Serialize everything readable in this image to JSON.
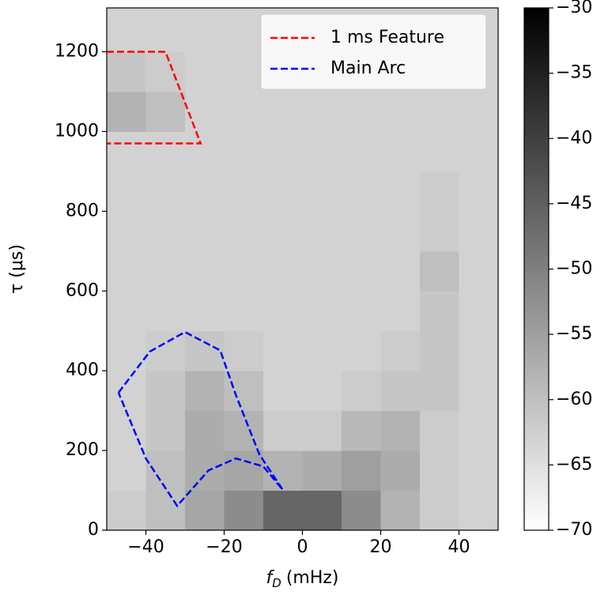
{
  "chart_data": {
    "type": "heatmap",
    "xlabel": {
      "symbol": "f",
      "subscript": "D",
      "unit": "(mHz)"
    },
    "ylabel": "τ (μs)",
    "xlim": [
      -50,
      50
    ],
    "ylim": [
      0,
      1310
    ],
    "xticks": [
      {
        "value": -40,
        "label": "−40"
      },
      {
        "value": -20,
        "label": "−20"
      },
      0,
      20,
      40
    ],
    "yticks": [
      0,
      200,
      400,
      600,
      800,
      1000,
      1200
    ],
    "xbins": [
      -50,
      -40,
      -30,
      -20,
      -10,
      0,
      10,
      20,
      30,
      40,
      50
    ],
    "ybins": [
      0,
      100,
      200,
      300,
      400,
      500,
      600,
      700,
      800,
      900,
      1000,
      1100,
      1200,
      1310
    ],
    "z": [
      [
        -62,
        -60,
        -56,
        -52,
        -46,
        -46,
        -52,
        -58,
        -62,
        -63
      ],
      [
        -63,
        -60,
        -57,
        -56,
        -58,
        -57,
        -55,
        -57,
        -62,
        -63
      ],
      [
        -63,
        -61,
        -57,
        -58,
        -62,
        -62,
        -59,
        -58,
        -62,
        -63
      ],
      [
        -63,
        -61,
        -58,
        -60,
        -63,
        -63,
        -62,
        -61,
        -61,
        -63
      ],
      [
        -63,
        -62,
        -61,
        -62,
        -63,
        -63,
        -63,
        -62,
        -61,
        -63
      ],
      [
        -63,
        -63,
        -63,
        -63,
        -63,
        -63,
        -63,
        -63,
        -61,
        -63
      ],
      [
        -63,
        -63,
        -63,
        -63,
        -63,
        -63,
        -63,
        -63,
        -60,
        -63
      ],
      [
        -63,
        -63,
        -63,
        -63,
        -63,
        -63,
        -63,
        -63,
        -62,
        -63
      ],
      [
        -63,
        -63,
        -63,
        -63,
        -63,
        -63,
        -63,
        -63,
        -62,
        -63
      ],
      [
        -63,
        -63,
        -63,
        -63,
        -63,
        -63,
        -63,
        -63,
        -63,
        -63
      ],
      [
        -58,
        -60,
        -63,
        -63,
        -63,
        -63,
        -63,
        -63,
        -63,
        -63
      ],
      [
        -61,
        -62,
        -63,
        -63,
        -63,
        -63,
        -63,
        -63,
        -63,
        -63
      ],
      [
        -63,
        -63,
        -63,
        -63,
        -63,
        -63,
        -63,
        -63,
        -63,
        -63
      ]
    ],
    "colorbar": {
      "lim": [
        -70,
        -30
      ],
      "ticks": [
        {
          "value": -70,
          "label": "−70"
        },
        {
          "value": -65,
          "label": "−65"
        },
        {
          "value": -60,
          "label": "−60"
        },
        {
          "value": -55,
          "label": "−55"
        },
        {
          "value": -50,
          "label": "−50"
        },
        {
          "value": -45,
          "label": "−45"
        },
        {
          "value": -40,
          "label": "−40"
        },
        {
          "value": -35,
          "label": "−35"
        },
        {
          "value": -30,
          "label": "−30"
        }
      ]
    },
    "series": [
      {
        "name": "1 ms Feature",
        "color": "#ff0000",
        "x": [
          -50,
          -35,
          -26,
          -50
        ],
        "values": [
          1200,
          1200,
          970,
          970
        ]
      },
      {
        "name": "Main Arc",
        "color": "#0000ff",
        "x": [
          -47,
          -39,
          -30,
          -21,
          -17,
          -11,
          -5,
          -10,
          -17,
          -24,
          -32,
          -40,
          -47
        ],
        "values": [
          345,
          448,
          497,
          451,
          339,
          190,
          101,
          160,
          180,
          150,
          61,
          180,
          345
        ]
      }
    ]
  }
}
